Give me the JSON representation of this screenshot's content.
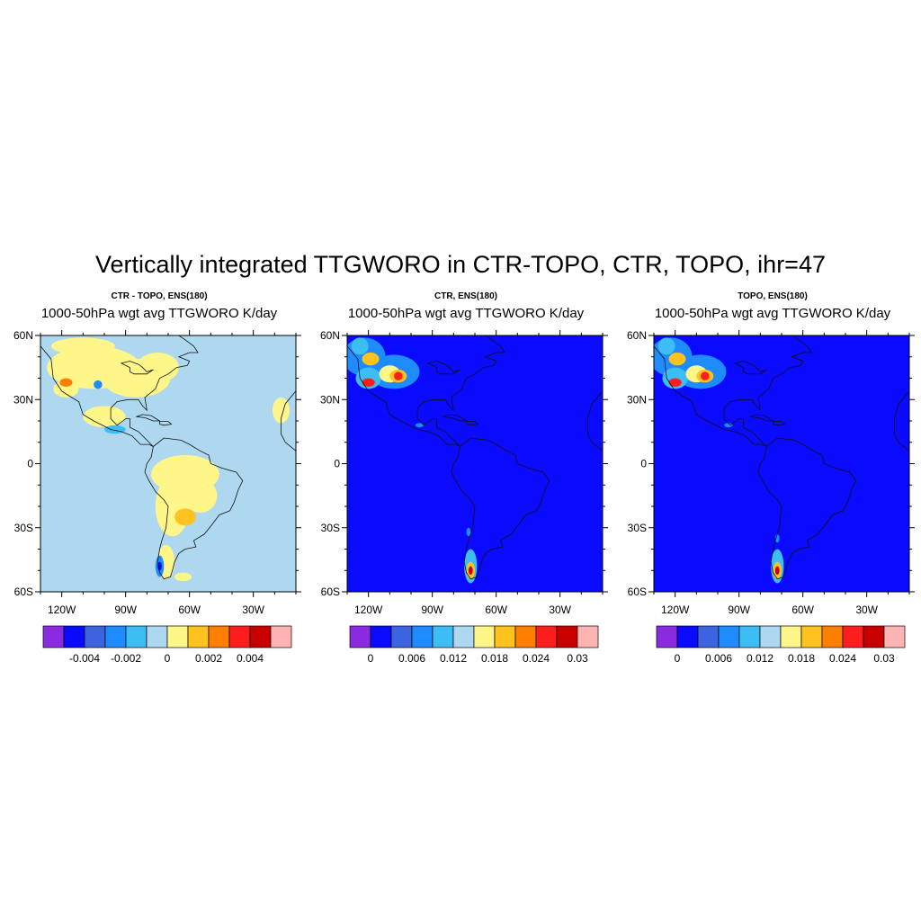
{
  "figure": {
    "title": "Vertically integrated TTGWORO in CTR-TOPO, CTR, TOPO, ihr=47"
  },
  "map_axes": {
    "lat_labels": [
      "60N",
      "30N",
      "0",
      "30S",
      "60S"
    ],
    "lat_values": [
      60,
      30,
      0,
      -30,
      -60
    ],
    "lon_labels": [
      "120W",
      "90W",
      "60W",
      "30W"
    ],
    "lon_values": [
      -120,
      -90,
      -60,
      -30
    ],
    "lon_range": [
      -130,
      -10
    ],
    "lat_range": [
      -60,
      60
    ]
  },
  "panels": [
    {
      "id": "ctr-minus-topo",
      "subtitle": "CTR - TOPO, ENS(180)",
      "variable_line": "1000-50hPa wgt avg TTGWORO K/day",
      "background": "#add8f0",
      "colorbar": {
        "colors": [
          "#8a2be2",
          "#0a0aff",
          "#3c64e0",
          "#1e8cff",
          "#3cbef5",
          "#add8f0",
          "#fff68a",
          "#ffc21e",
          "#ff8000",
          "#ff1e1e",
          "#c80000",
          "#ffb4b4"
        ],
        "labels": [
          "-0.004",
          "-0.002",
          "0",
          "0.002",
          "0.004"
        ],
        "label_boundaries": [
          2,
          4,
          6,
          8,
          10
        ]
      }
    },
    {
      "id": "ctr",
      "subtitle": "CTR, ENS(180)",
      "variable_line": "1000-50hPa wgt avg TTGWORO K/day",
      "background": "#0a0aff",
      "colorbar": {
        "colors": [
          "#8a2be2",
          "#0a0aff",
          "#3c64e0",
          "#1e8cff",
          "#3cbef5",
          "#add8f0",
          "#fff68a",
          "#ffc21e",
          "#ff8000",
          "#ff1e1e",
          "#c80000",
          "#ffb4b4"
        ],
        "labels": [
          "0",
          "0.006",
          "0.012",
          "0.018",
          "0.024",
          "0.03"
        ],
        "label_boundaries": [
          1,
          3,
          5,
          7,
          9,
          11
        ]
      }
    },
    {
      "id": "topo",
      "subtitle": "TOPO, ENS(180)",
      "variable_line": "1000-50hPa wgt avg TTGWORO K/day",
      "background": "#0a0aff",
      "colorbar": {
        "colors": [
          "#8a2be2",
          "#0a0aff",
          "#3c64e0",
          "#1e8cff",
          "#3cbef5",
          "#add8f0",
          "#fff68a",
          "#ffc21e",
          "#ff8000",
          "#ff1e1e",
          "#c80000",
          "#ffb4b4"
        ],
        "labels": [
          "0",
          "0.006",
          "0.012",
          "0.018",
          "0.024",
          "0.03"
        ],
        "label_boundaries": [
          1,
          3,
          5,
          7,
          9,
          11
        ]
      }
    }
  ]
}
